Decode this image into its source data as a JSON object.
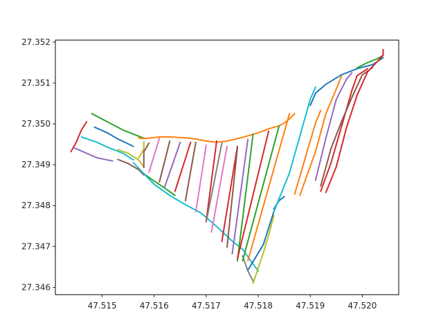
{
  "chart_data": {
    "type": "line",
    "title": "",
    "xlabel": "",
    "ylabel": "",
    "xlim": [
      47.5141,
      47.5207
    ],
    "ylim": [
      27.34582,
      27.35205
    ],
    "grid": false,
    "legend": "none",
    "x_ticks": [
      47.515,
      47.516,
      47.517,
      47.518,
      47.519,
      47.52
    ],
    "x_tick_labels": [
      "47.515",
      "47.516",
      "47.517",
      "47.518",
      "47.519",
      "47.520"
    ],
    "y_ticks": [
      27.346,
      27.347,
      27.348,
      27.349,
      27.35,
      27.351,
      27.352
    ],
    "y_tick_labels": [
      "27.346",
      "27.347",
      "27.348",
      "27.349",
      "27.350",
      "27.351",
      "27.352"
    ],
    "color_cycle": [
      "#1f77b4",
      "#ff7f0e",
      "#2ca02c",
      "#d62728",
      "#9467bd",
      "#8c564b",
      "#e377c2",
      "#7f7f7f",
      "#bcbd22",
      "#17becf"
    ],
    "series": [
      {
        "color": "#d62728",
        "x": [
          47.5144,
          47.5145,
          47.5146,
          47.5147
        ],
        "y": [
          27.34932,
          27.34955,
          27.34985,
          27.35005
        ]
      },
      {
        "color": "#9467bd",
        "x": [
          47.51445,
          47.5147,
          47.5149,
          47.5152
        ],
        "y": [
          27.34942,
          27.34928,
          27.34917,
          27.34909
        ]
      },
      {
        "color": "#17becf",
        "x": [
          47.5146,
          47.5149,
          47.5151,
          47.5154,
          47.5156
        ],
        "y": [
          27.34968,
          27.34955,
          27.34943,
          27.34928,
          27.34912
        ]
      },
      {
        "color": "#1f77b4",
        "x": [
          47.51485,
          47.5151,
          47.5153,
          47.5156
        ],
        "y": [
          27.34992,
          27.34978,
          27.34963,
          27.34945
        ]
      },
      {
        "color": "#2ca02c",
        "x": [
          47.5148,
          47.5151,
          47.5154,
          47.5156,
          47.5158
        ],
        "y": [
          27.35025,
          27.35005,
          27.34985,
          27.34975,
          27.34965
        ]
      },
      {
        "color": "#8c564b",
        "x": [
          47.5153,
          47.5155,
          47.5157,
          47.5158
        ],
        "y": [
          27.34913,
          27.34903,
          27.34888,
          27.34875
        ]
      },
      {
        "color": "#bcbd22",
        "x": [
          47.5153,
          47.5155,
          47.5157,
          47.5158
        ],
        "y": [
          27.34937,
          27.34928,
          27.34912,
          27.34895
        ]
      },
      {
        "color": "#ff7f0e",
        "x": [
          47.5157,
          47.5158,
          47.5161,
          47.5163,
          47.5166,
          47.5168,
          47.517,
          47.5172,
          47.5174,
          47.5177,
          47.518,
          47.5182,
          47.5184,
          47.5185,
          47.5186,
          47.5187
        ],
        "y": [
          27.34966,
          27.34964,
          27.34968,
          27.34968,
          27.34966,
          27.34963,
          27.34958,
          27.34955,
          27.34958,
          27.34967,
          27.34978,
          27.34988,
          27.34995,
          27.35002,
          27.35012,
          27.35025
        ]
      },
      {
        "color": "#bcbd22",
        "x": [
          47.5157,
          47.5158,
          47.5158
        ],
        "y": [
          27.34917,
          27.34938,
          27.34956
        ]
      },
      {
        "color": "#8c564b",
        "x": [
          47.5159,
          47.5158,
          47.5158
        ],
        "y": [
          27.34953,
          27.34932,
          27.34893
        ]
      },
      {
        "color": "#2ca02c",
        "x": [
          47.5158,
          47.516,
          47.5162,
          47.5164
        ],
        "y": [
          27.34878,
          27.3486,
          27.34843,
          27.34825
        ]
      },
      {
        "color": "#17becf",
        "x": [
          47.5156,
          47.5158,
          47.516,
          47.5163,
          47.5166,
          47.5169,
          47.5171,
          47.5173,
          47.5175,
          47.5177,
          47.5178,
          47.5179,
          47.518
        ],
        "y": [
          27.34905,
          27.34878,
          27.34852,
          27.34825,
          27.34802,
          27.34782,
          27.3476,
          27.34737,
          27.34713,
          27.34693,
          27.34675,
          27.34657,
          27.3464
        ]
      },
      {
        "color": "#7f7f7f",
        "x": [
          47.5177,
          47.5178,
          47.5179
        ],
        "y": [
          27.34677,
          27.3464,
          27.34615
        ]
      },
      {
        "color": "#bcbd22",
        "x": [
          47.5179,
          47.5181,
          47.5182,
          47.5183
        ],
        "y": [
          27.3461,
          27.34685,
          27.34727,
          27.34775
        ]
      },
      {
        "color": "#e377c2",
        "x": [
          47.5159,
          47.5161
        ],
        "y": [
          27.34882,
          27.34965
        ]
      },
      {
        "color": "#8c564b",
        "x": [
          47.5161,
          47.5163
        ],
        "y": [
          27.34858,
          27.34958
        ]
      },
      {
        "color": "#9467bd",
        "x": [
          47.5162,
          47.5165
        ],
        "y": [
          27.34845,
          27.34955
        ]
      },
      {
        "color": "#d62728",
        "x": [
          47.5164,
          47.5167
        ],
        "y": [
          27.34835,
          27.34955
        ]
      },
      {
        "color": "#8c564b",
        "x": [
          47.5166,
          47.5168
        ],
        "y": [
          27.34812,
          27.34955
        ]
      },
      {
        "color": "#e377c2",
        "x": [
          47.5168,
          47.517
        ],
        "y": [
          27.34785,
          27.34948
        ]
      },
      {
        "color": "#d62728",
        "x": [
          47.517,
          47.5172
        ],
        "y": [
          27.34762,
          27.34958
        ]
      },
      {
        "color": "#7f7f7f",
        "x": [
          47.517,
          47.5173
        ],
        "y": [
          27.3476,
          27.34953
        ]
      },
      {
        "color": "#e377c2",
        "x": [
          47.5171,
          47.5174
        ],
        "y": [
          27.34735,
          27.34945
        ]
      },
      {
        "color": "#d62728",
        "x": [
          47.5173,
          47.5176
        ],
        "y": [
          27.34712,
          27.34945
        ]
      },
      {
        "color": "#8c564b",
        "x": [
          47.5174,
          47.5176
        ],
        "y": [
          27.34698,
          27.34942
        ]
      },
      {
        "color": "#9467bd",
        "x": [
          47.5175,
          47.5178
        ],
        "y": [
          27.34682,
          27.34962
        ]
      },
      {
        "color": "#2ca02c",
        "x": [
          47.5176,
          47.5179
        ],
        "y": [
          27.34665,
          27.34975
        ]
      },
      {
        "color": "#d62728",
        "x": [
          47.5176,
          47.5182
        ],
        "y": [
          27.3467,
          27.34982
        ]
      },
      {
        "color": "#2ca02c",
        "x": [
          47.5177,
          47.5184
        ],
        "y": [
          27.34665,
          27.34995
        ]
      },
      {
        "color": "#ff7f0e",
        "x": [
          47.5178,
          47.5186
        ],
        "y": [
          27.34665,
          27.35025
        ]
      },
      {
        "color": "#1f77b4",
        "x": [
          47.5178,
          47.5181,
          47.5183,
          47.5184
        ],
        "y": [
          27.34642,
          27.34705,
          27.34785,
          27.34817
        ]
      },
      {
        "color": "#1f77b4",
        "x": [
          47.5183,
          47.5184,
          47.5185
        ],
        "y": [
          27.34792,
          27.34812,
          27.34822
        ]
      },
      {
        "color": "#17becf",
        "x": [
          47.5183,
          47.5186,
          47.5188,
          47.519,
          47.5191
        ],
        "y": [
          27.34785,
          27.3488,
          27.3497,
          27.3506,
          27.3509
        ]
      },
      {
        "color": "#ff7f0e",
        "x": [
          47.5187,
          47.5189,
          47.5191,
          47.5192
        ],
        "y": [
          27.34828,
          27.34915,
          27.35002,
          27.35033
        ]
      },
      {
        "color": "#1f77b4",
        "x": [
          47.519,
          47.5191,
          47.5193,
          47.5196,
          47.5199,
          47.5202,
          47.5204
        ],
        "y": [
          27.35045,
          27.35075,
          27.35097,
          27.3512,
          27.35135,
          27.35145,
          27.35162
        ]
      },
      {
        "color": "#2ca02c",
        "x": [
          47.5199,
          47.5201,
          47.5203,
          47.5204
        ],
        "y": [
          27.35137,
          27.3515,
          27.3516,
          27.35168
        ]
      },
      {
        "color": "#ff7f0e",
        "x": [
          47.5188,
          47.5191,
          47.5193,
          47.5195,
          47.5196
        ],
        "y": [
          27.34825,
          27.34932,
          27.35025,
          27.35085,
          27.35117
        ]
      },
      {
        "color": "#9467bd",
        "x": [
          47.5191,
          47.5193,
          47.5195,
          47.5197,
          47.5198
        ],
        "y": [
          27.34862,
          27.34965,
          27.3506,
          27.3511,
          27.35125
        ]
      },
      {
        "color": "#d62728",
        "x": [
          47.5192,
          47.5194,
          47.5196,
          47.5198,
          47.5199,
          47.5201
        ],
        "y": [
          27.34835,
          27.34905,
          27.34993,
          27.35082,
          27.35118,
          27.35135
        ]
      },
      {
        "color": "#8c564b",
        "x": [
          47.5192,
          47.5194,
          47.5196,
          47.5198,
          47.52,
          47.5202
        ],
        "y": [
          27.34848,
          27.3494,
          27.35005,
          27.35065,
          27.3512,
          27.35138
        ]
      },
      {
        "color": "#d62728",
        "x": [
          47.5193,
          47.5195,
          47.5197,
          47.5199,
          47.5201,
          47.5204,
          47.5204
        ],
        "y": [
          27.34832,
          27.34895,
          27.34992,
          27.3507,
          27.35127,
          27.35168,
          27.35182
        ]
      }
    ]
  }
}
